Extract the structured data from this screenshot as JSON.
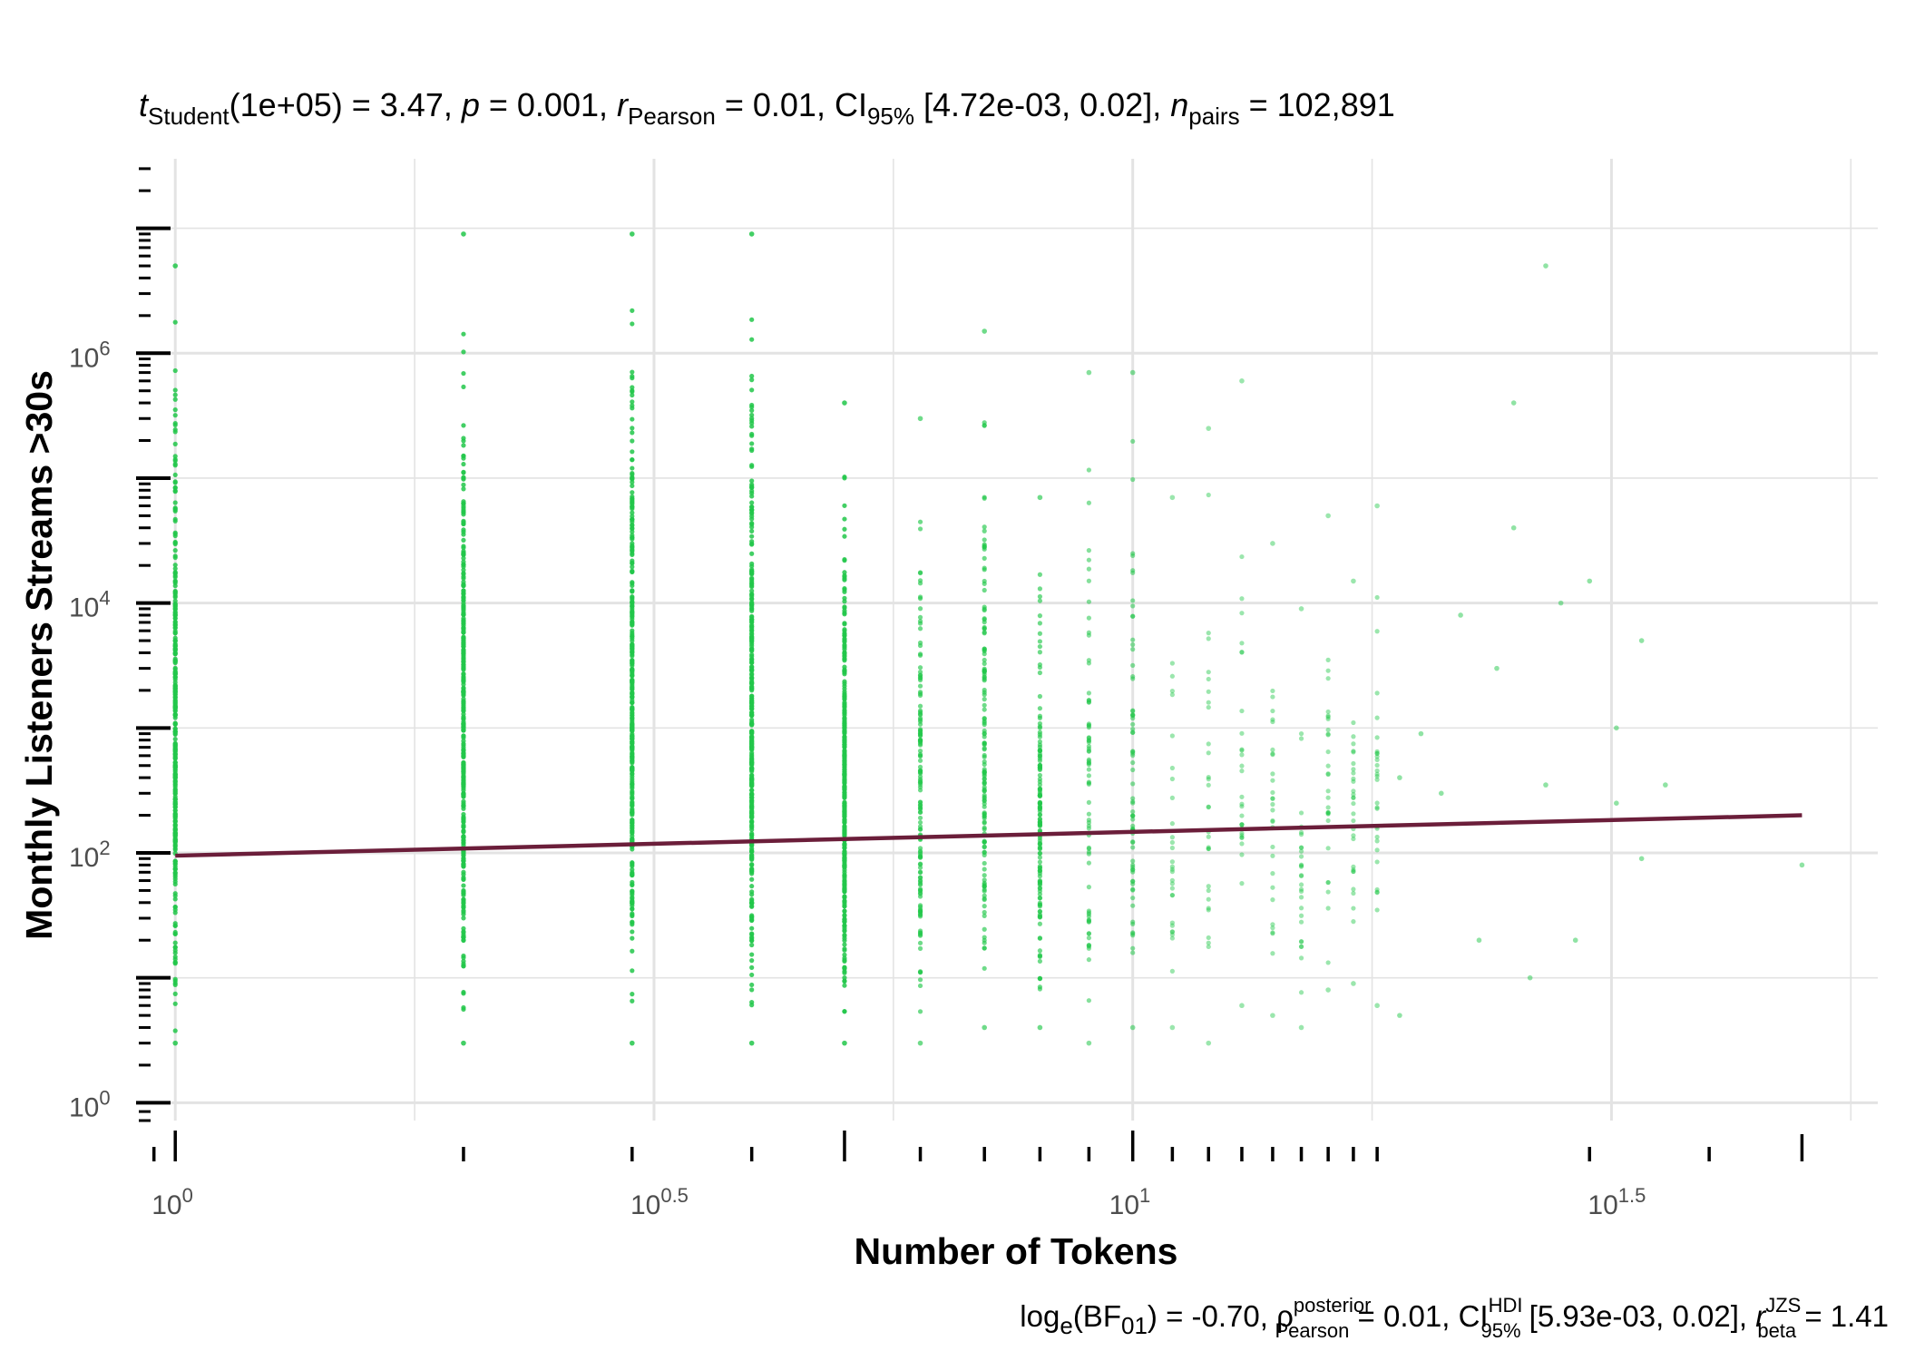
{
  "chart_data": {
    "type": "scatter",
    "title": "",
    "subtitle": {
      "t_symbol": "t",
      "t_sub": "Student",
      "t_df": "(1e+05) = 3.47, ",
      "p_symbol": "p",
      "p_val": " = 0.001, ",
      "r_symbol": "r",
      "r_sub": "Pearson",
      "r_val": " = 0.01, CI",
      "ci_sub": "95%",
      "ci_val": " [4.72e-03, 0.02], ",
      "n_symbol": "n",
      "n_sub": "pairs",
      "n_val": " = 102,891"
    },
    "caption": {
      "log": "log",
      "log_sub": "e",
      "bf": "(BF",
      "bf_sub": "01",
      "bf_val": ") = -0.70, ",
      "rho_symbol": "ρ",
      "rho_sup": "posterior",
      "rho_sub": "Pearson",
      "rho_val": " = 0.01, CI",
      "ci_sup": "HDI",
      "ci_sub": "95%",
      "ci_val": " [5.93e-03, 0.02], ",
      "r_symbol": "r",
      "r_sup": "JZS",
      "r_sub": "beta",
      "r_val": " = 1.41"
    },
    "xlabel": "Number of Tokens",
    "ylabel": "Monthly Listeners Streams >30s",
    "x_scale": "log10",
    "y_scale": "log10",
    "xlim": [
      0.92,
      60
    ],
    "ylim": [
      0.72,
      36000000
    ],
    "x_ticks": [
      {
        "base": "10",
        "exp": "0",
        "value": 1
      },
      {
        "base": "10",
        "exp": "0.5",
        "value": 3.1623
      },
      {
        "base": "10",
        "exp": "1",
        "value": 10
      },
      {
        "base": "10",
        "exp": "1.5",
        "value": 31.623
      }
    ],
    "y_ticks": [
      {
        "base": "10",
        "exp": "0",
        "value": 1
      },
      {
        "base": "10",
        "exp": "2",
        "value": 100
      },
      {
        "base": "10",
        "exp": "4",
        "value": 10000
      },
      {
        "base": "10",
        "exp": "6",
        "value": 1000000
      }
    ],
    "grid": true,
    "point_color": "#22c74a",
    "line_color": "#6b1e3a",
    "regression_line": {
      "x": [
        1,
        50
      ],
      "y": [
        95,
        200
      ]
    },
    "columns": [
      {
        "x": 1,
        "ymin": 3,
        "ymax": 5000000,
        "density": "solid"
      },
      {
        "x": 2,
        "ymin": 3,
        "ymax": 9000000,
        "density": "solid"
      },
      {
        "x": 3,
        "ymin": 3,
        "ymax": 9000000,
        "density": "solid"
      },
      {
        "x": 4,
        "ymin": 3,
        "ymax": 9000000,
        "density": "solid"
      },
      {
        "x": 5,
        "ymin": 3,
        "ymax": 400000,
        "density": "solid"
      },
      {
        "x": 6,
        "ymin": 3,
        "ymax": 300000,
        "density": "dense"
      },
      {
        "x": 7,
        "ymin": 4,
        "ymax": 1500000,
        "density": "dense"
      },
      {
        "x": 8,
        "ymin": 4,
        "ymax": 70000,
        "density": "dense"
      },
      {
        "x": 9,
        "ymin": 3,
        "ymax": 700000,
        "density": "medium"
      },
      {
        "x": 10,
        "ymin": 4,
        "ymax": 700000,
        "density": "medium"
      },
      {
        "x": 11,
        "ymin": 4,
        "ymax": 70000,
        "density": "sparse"
      },
      {
        "x": 12,
        "ymin": 3,
        "ymax": 250000,
        "density": "sparse"
      },
      {
        "x": 13,
        "ymin": 6,
        "ymax": 600000,
        "density": "sparse"
      },
      {
        "x": 14,
        "ymin": 5,
        "ymax": 30000,
        "density": "sparse"
      },
      {
        "x": 15,
        "ymin": 4,
        "ymax": 9000,
        "density": "sparse"
      },
      {
        "x": 16,
        "ymin": 8,
        "ymax": 50000,
        "density": "sparse"
      },
      {
        "x": 17,
        "ymin": 9,
        "ymax": 15000,
        "density": "sparse"
      },
      {
        "x": 18,
        "ymin": 6,
        "ymax": 60000,
        "density": "sparse"
      }
    ],
    "outliers": [
      {
        "x": 19,
        "y": 5
      },
      {
        "x": 19,
        "y": 400
      },
      {
        "x": 20,
        "y": 900
      },
      {
        "x": 21,
        "y": 300
      },
      {
        "x": 22,
        "y": 8000
      },
      {
        "x": 23,
        "y": 20
      },
      {
        "x": 24,
        "y": 3000
      },
      {
        "x": 25,
        "y": 400000
      },
      {
        "x": 25,
        "y": 40000
      },
      {
        "x": 26,
        "y": 10
      },
      {
        "x": 27,
        "y": 5000000
      },
      {
        "x": 27,
        "y": 350
      },
      {
        "x": 28,
        "y": 10000
      },
      {
        "x": 29,
        "y": 20
      },
      {
        "x": 30,
        "y": 15000
      },
      {
        "x": 32,
        "y": 1000
      },
      {
        "x": 32,
        "y": 250
      },
      {
        "x": 34,
        "y": 5000
      },
      {
        "x": 34,
        "y": 90
      },
      {
        "x": 36,
        "y": 350
      },
      {
        "x": 50,
        "y": 80
      }
    ]
  }
}
